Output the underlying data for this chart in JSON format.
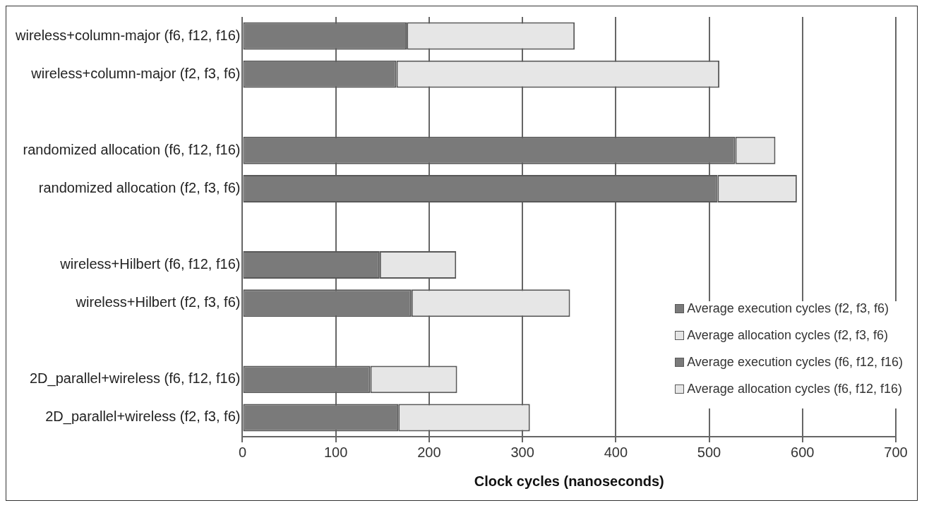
{
  "chart_data": {
    "type": "bar",
    "orientation": "horizontal",
    "stacked": true,
    "xlabel": "Clock cycles (nanoseconds)",
    "categories": [
      "wireless+column-major (f6, f12, f16)",
      "wireless+column-major (f2, f3, f6)",
      null,
      "randomized allocation (f6, f12, f16)",
      "randomized allocation (f2, f3, f6)",
      null,
      "wireless+Hilbert (f6, f12, f16)",
      "wireless+Hilbert (f2, f3, f6)",
      null,
      "2D_parallel+wireless (f6, f12, f16)",
      "2D_parallel+wireless (f2, f3, f6)"
    ],
    "series": [
      {
        "name": "Average execution cycles (f2, f3, f6)",
        "color": "#7a7a7a",
        "values": [
          null,
          165,
          null,
          null,
          509,
          null,
          null,
          181,
          null,
          null,
          167
        ]
      },
      {
        "name": "Average allocation cycles (f2, f3, f6)",
        "color": "#e6e6e6",
        "values": [
          null,
          346,
          null,
          null,
          85,
          null,
          null,
          170,
          null,
          null,
          141
        ]
      },
      {
        "name": "Average execution cycles (f6, f12, f16)",
        "color": "#7a7a7a",
        "values": [
          176,
          null,
          null,
          528,
          null,
          null,
          147,
          null,
          null,
          137,
          null
        ]
      },
      {
        "name": "Average allocation cycles (f6, f12, f16)",
        "color": "#e6e6e6",
        "values": [
          180,
          null,
          null,
          43,
          null,
          null,
          82,
          null,
          null,
          93,
          null
        ]
      }
    ],
    "xlim": [
      0,
      700
    ],
    "xticks": [
      0,
      100,
      200,
      300,
      400,
      500,
      600,
      700
    ],
    "grid": "x",
    "legend": "bottom right"
  }
}
